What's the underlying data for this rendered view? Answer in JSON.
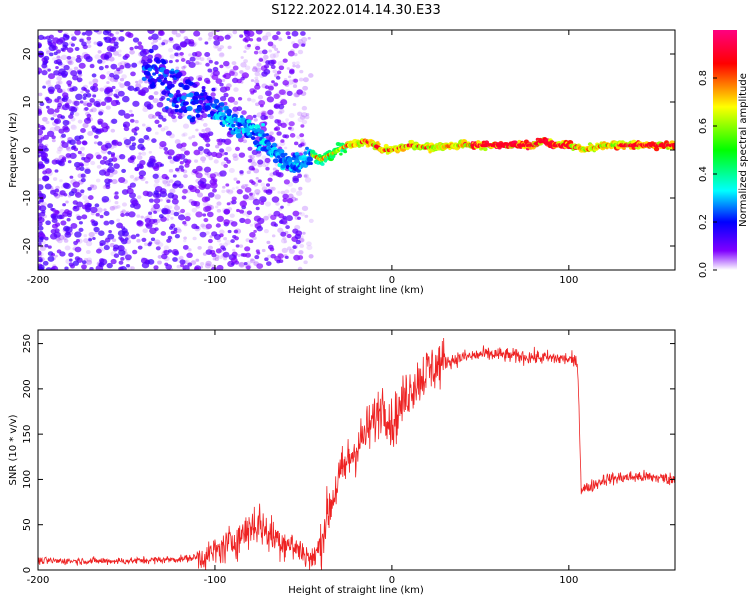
{
  "title": "S122.2022.014.14.30.E33",
  "chart_data": [
    {
      "type": "heatmap",
      "xlabel": "Height of straight line (km)",
      "ylabel": "Frequency (Hz)",
      "xlim": [
        -200,
        160
      ],
      "ylim": [
        -25,
        25
      ],
      "x_ticks": [
        -200,
        -100,
        0,
        100
      ],
      "y_ticks": [
        -20,
        -10,
        0,
        10,
        20
      ],
      "grid": false,
      "colorbar": {
        "label": "Normalized spectral amplitude",
        "range": [
          0,
          1
        ],
        "ticks": [
          "0.0",
          "0.2",
          "0.4",
          "0.6",
          "0.8"
        ],
        "colormap": [
          "#ffffff",
          "#8000ff",
          "#0000ff",
          "#00ffff",
          "#00ff00",
          "#ffff00",
          "#ff0000",
          "#ff0080"
        ]
      },
      "ridge": {
        "x": [
          -200,
          -150,
          -130,
          -115,
          -100,
          -90,
          -80,
          -70,
          -60,
          -50,
          -45,
          -40,
          -35,
          -30,
          -25,
          -20,
          -15,
          -10,
          -5,
          0,
          10,
          20,
          40,
          60,
          80,
          85,
          90,
          100,
          110,
          120,
          140,
          160
        ],
        "y": [
          18,
          18,
          15,
          11,
          8,
          6,
          4,
          1,
          -3,
          -2,
          -1,
          -2,
          -1,
          0,
          1,
          1,
          2,
          1,
          0,
          0,
          1,
          0.5,
          1,
          1,
          1,
          2,
          1,
          1,
          0,
          1,
          1,
          1
        ]
      }
    },
    {
      "type": "line",
      "xlabel": "Height of straight line (km)",
      "ylabel": "SNR (10 * v/v)",
      "xlim": [
        -200,
        160
      ],
      "ylim": [
        0,
        265
      ],
      "x_ticks": [
        -200,
        -100,
        0,
        100
      ],
      "y_ticks": [
        0,
        50,
        100,
        150,
        200,
        250
      ],
      "grid": false,
      "color": "#ee2222",
      "series": [
        {
          "x": [
            -200,
            -150,
            -120,
            -105,
            -95,
            -85,
            -80,
            -75,
            -70,
            -65,
            -60,
            -55,
            -50,
            -45,
            -40,
            -38,
            -35,
            -30,
            -25,
            -20,
            -15,
            -10,
            -5,
            0,
            5,
            10,
            15,
            20,
            25,
            30,
            35,
            40,
            45,
            50,
            60,
            70,
            80,
            90,
            100,
            103,
            105,
            106,
            107,
            110,
            115,
            120,
            130,
            140,
            150,
            160
          ],
          "y": [
            10,
            10,
            12,
            15,
            25,
            38,
            48,
            52,
            40,
            35,
            30,
            25,
            20,
            10,
            30,
            50,
            70,
            100,
            120,
            135,
            150,
            165,
            185,
            160,
            180,
            200,
            210,
            220,
            225,
            230,
            232,
            235,
            236,
            238,
            238,
            236,
            235,
            234,
            233,
            230,
            228,
            160,
            90,
            90,
            95,
            100,
            102,
            103,
            102,
            100
          ]
        }
      ]
    }
  ]
}
